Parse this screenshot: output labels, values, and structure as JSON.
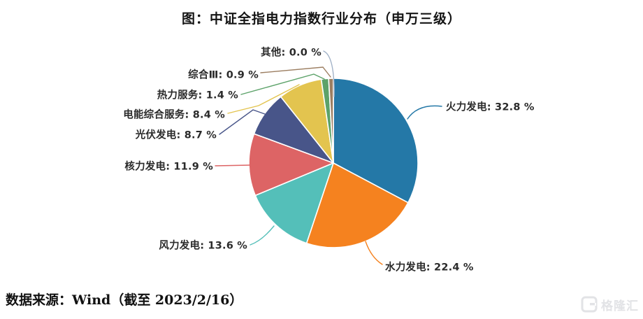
{
  "title": "图：中证全指电力指数行业分布（申万三级）",
  "source": "数据来源：Wind（截至 2023/2/16）",
  "watermark": {
    "brand": "格隆汇",
    "icon": "gelonghui-g-icon"
  },
  "chart_data": {
    "type": "pie",
    "title": "图：中证全指电力指数行业分布（申万三级）",
    "legend_position": "none",
    "labels_style": "outside-with-leader-lines",
    "label_format": "{name}: {value} %",
    "start_angle_deg": 0,
    "direction": "clockwise",
    "slices": [
      {
        "label": "火力发电",
        "value": 32.8,
        "display": "32.8",
        "color": "#2478A7"
      },
      {
        "label": "水力发电",
        "value": 22.4,
        "display": "22.4",
        "color": "#F5821F"
      },
      {
        "label": "风力发电",
        "value": 13.6,
        "display": "13.6",
        "color": "#54BFB9"
      },
      {
        "label": "核力发电",
        "value": 11.9,
        "display": "11.9",
        "color": "#DD6465"
      },
      {
        "label": "光伏发电",
        "value": 8.7,
        "display": "8.7",
        "color": "#485589"
      },
      {
        "label": "电能综合服务",
        "value": 8.4,
        "display": "8.4",
        "color": "#E3C44F"
      },
      {
        "label": "热力服务",
        "value": 1.4,
        "display": "1.4",
        "color": "#5CA269"
      },
      {
        "label": "综合Ⅲ",
        "value": 0.9,
        "display": "0.9",
        "color": "#9C7E61"
      },
      {
        "label": "其他",
        "value": 0.0,
        "display": "0.0",
        "color": "#9FB0C6"
      }
    ]
  }
}
